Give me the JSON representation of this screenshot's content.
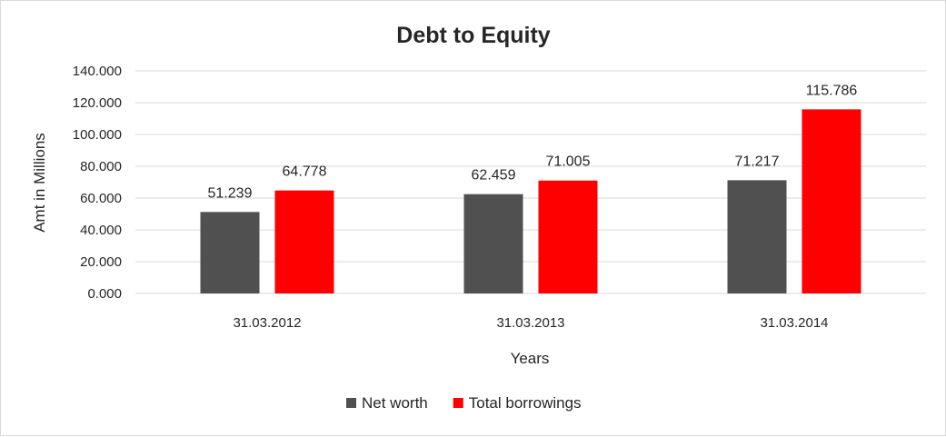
{
  "chart_data": {
    "type": "bar",
    "title": "Debt to Equity",
    "xlabel": "Years",
    "ylabel": "Amt in Millions",
    "categories": [
      "31.03.2012",
      "31.03.2013",
      "31.03.2014"
    ],
    "series": [
      {
        "name": "Net worth",
        "color": "#505050",
        "values": [
          51.239,
          62.459,
          71.217
        ],
        "labels": [
          "51.239",
          "62.459",
          "71.217"
        ]
      },
      {
        "name": "Total borrowings",
        "color": "#ff0000",
        "values": [
          64.778,
          71.005,
          115.786
        ],
        "labels": [
          "64.778",
          "71.005",
          "115.786"
        ]
      }
    ],
    "ylim": [
      0,
      140
    ],
    "yticks": [
      0,
      20,
      40,
      60,
      80,
      100,
      120,
      140
    ],
    "ytick_labels": [
      "0.000",
      "20.000",
      "40.000",
      "60.000",
      "80.000",
      "100.000",
      "120.000",
      "140.000"
    ],
    "grid": true,
    "legend_position": "bottom"
  }
}
